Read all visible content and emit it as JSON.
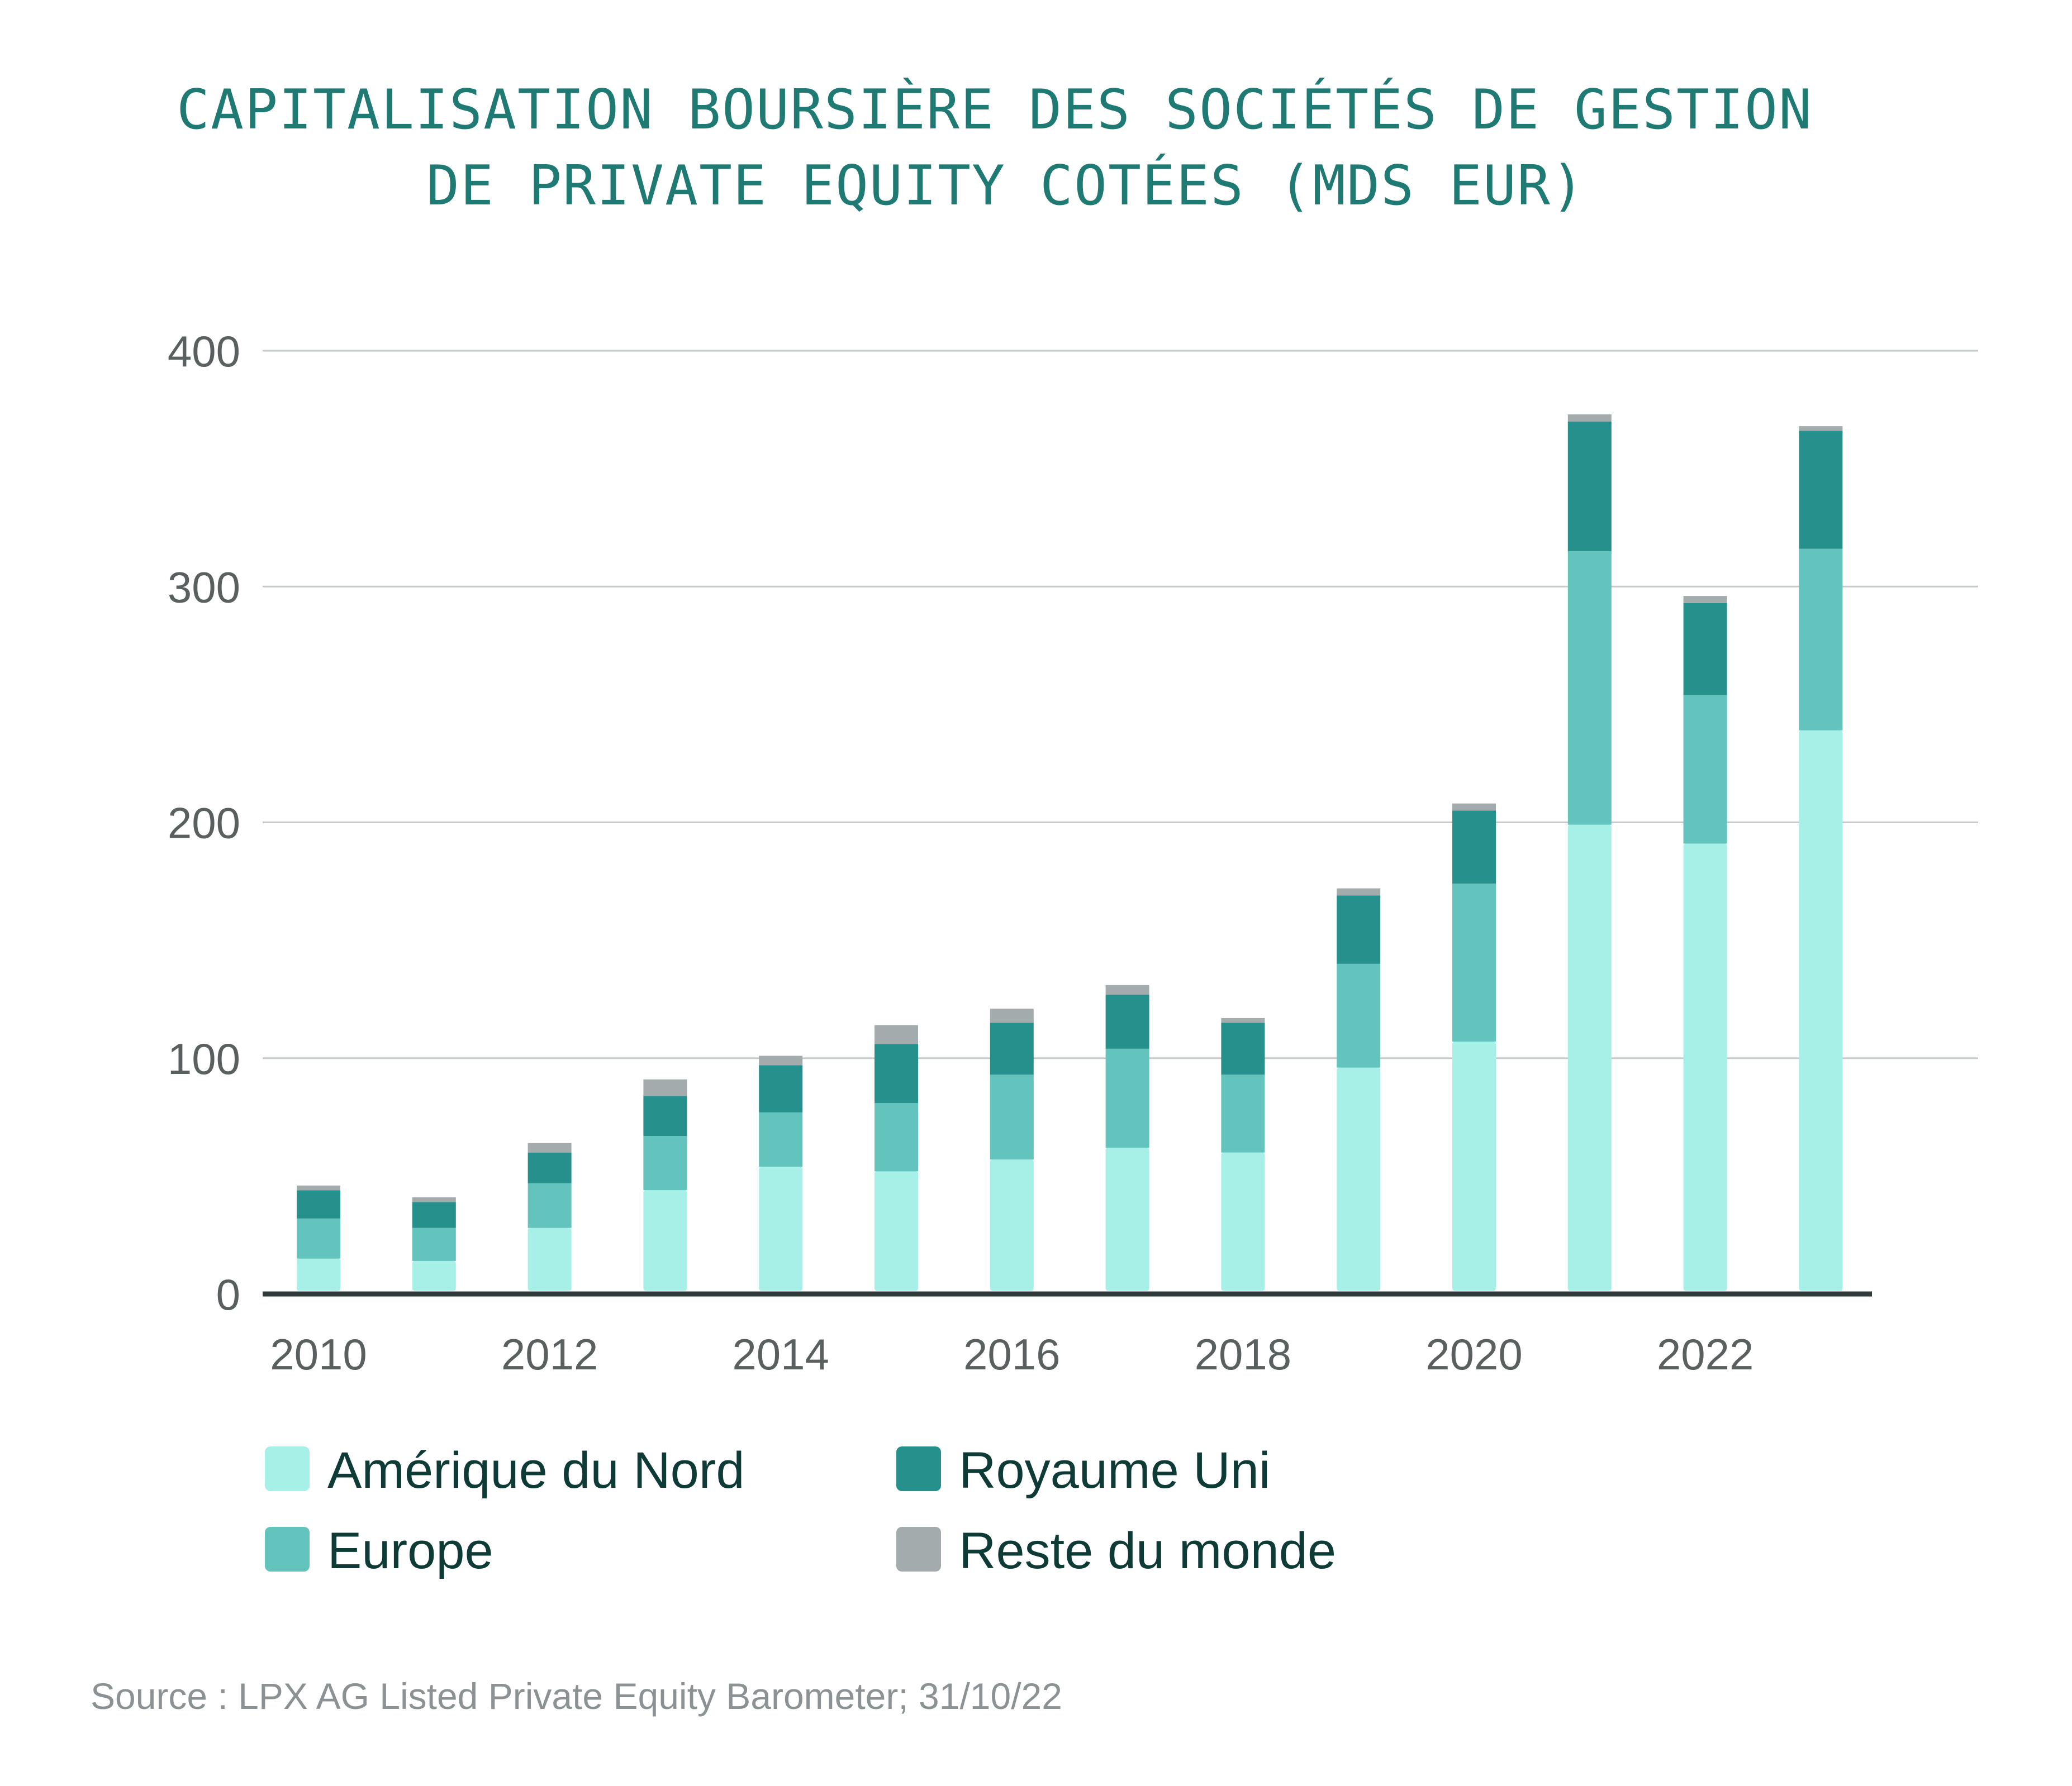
{
  "chart_data": {
    "type": "bar",
    "stacked": true,
    "title_lines": [
      "CAPITALISATION BOURSIÈRE DES SOCIÉTÉS DE GESTION",
      "DE PRIVATE EQUITY COTÉES (MDS EUR)"
    ],
    "xlabel": "",
    "ylabel": "",
    "ylim": [
      0,
      400
    ],
    "yticks": [
      0,
      100,
      200,
      300,
      400
    ],
    "xtick_labels": [
      "2010",
      "2012",
      "2014",
      "2016",
      "2018",
      "2020",
      "2022"
    ],
    "categories": [
      "2010",
      "2011",
      "2012",
      "2013",
      "2014",
      "2015",
      "2016",
      "2017",
      "2018",
      "2019",
      "2020",
      "2021",
      "2022",
      "2023"
    ],
    "series": [
      {
        "name": "Amérique du Nord",
        "color": "#a6f0e8",
        "values": [
          15,
          14,
          28,
          44,
          54,
          52,
          57,
          62,
          60,
          96,
          107,
          199,
          191,
          239
        ]
      },
      {
        "name": "Europe",
        "color": "#62c4bc",
        "values": [
          17,
          14,
          19,
          23,
          23,
          29,
          36,
          42,
          33,
          44,
          67,
          116,
          63,
          77
        ]
      },
      {
        "name": "Royaume Uni",
        "color": "#25908c",
        "values": [
          12,
          11,
          13,
          17,
          20,
          25,
          22,
          23,
          22,
          29,
          31,
          55,
          39,
          50
        ]
      },
      {
        "name": "Reste du monde",
        "color": "#a4abac",
        "values": [
          2,
          2,
          4,
          7,
          4,
          8,
          6,
          4,
          2,
          3,
          3,
          3,
          3,
          2
        ]
      }
    ],
    "legend_position": "bottom",
    "grid": true
  },
  "source": "Source :  LPX AG Listed Private Equity Barometer; 31/10/22"
}
